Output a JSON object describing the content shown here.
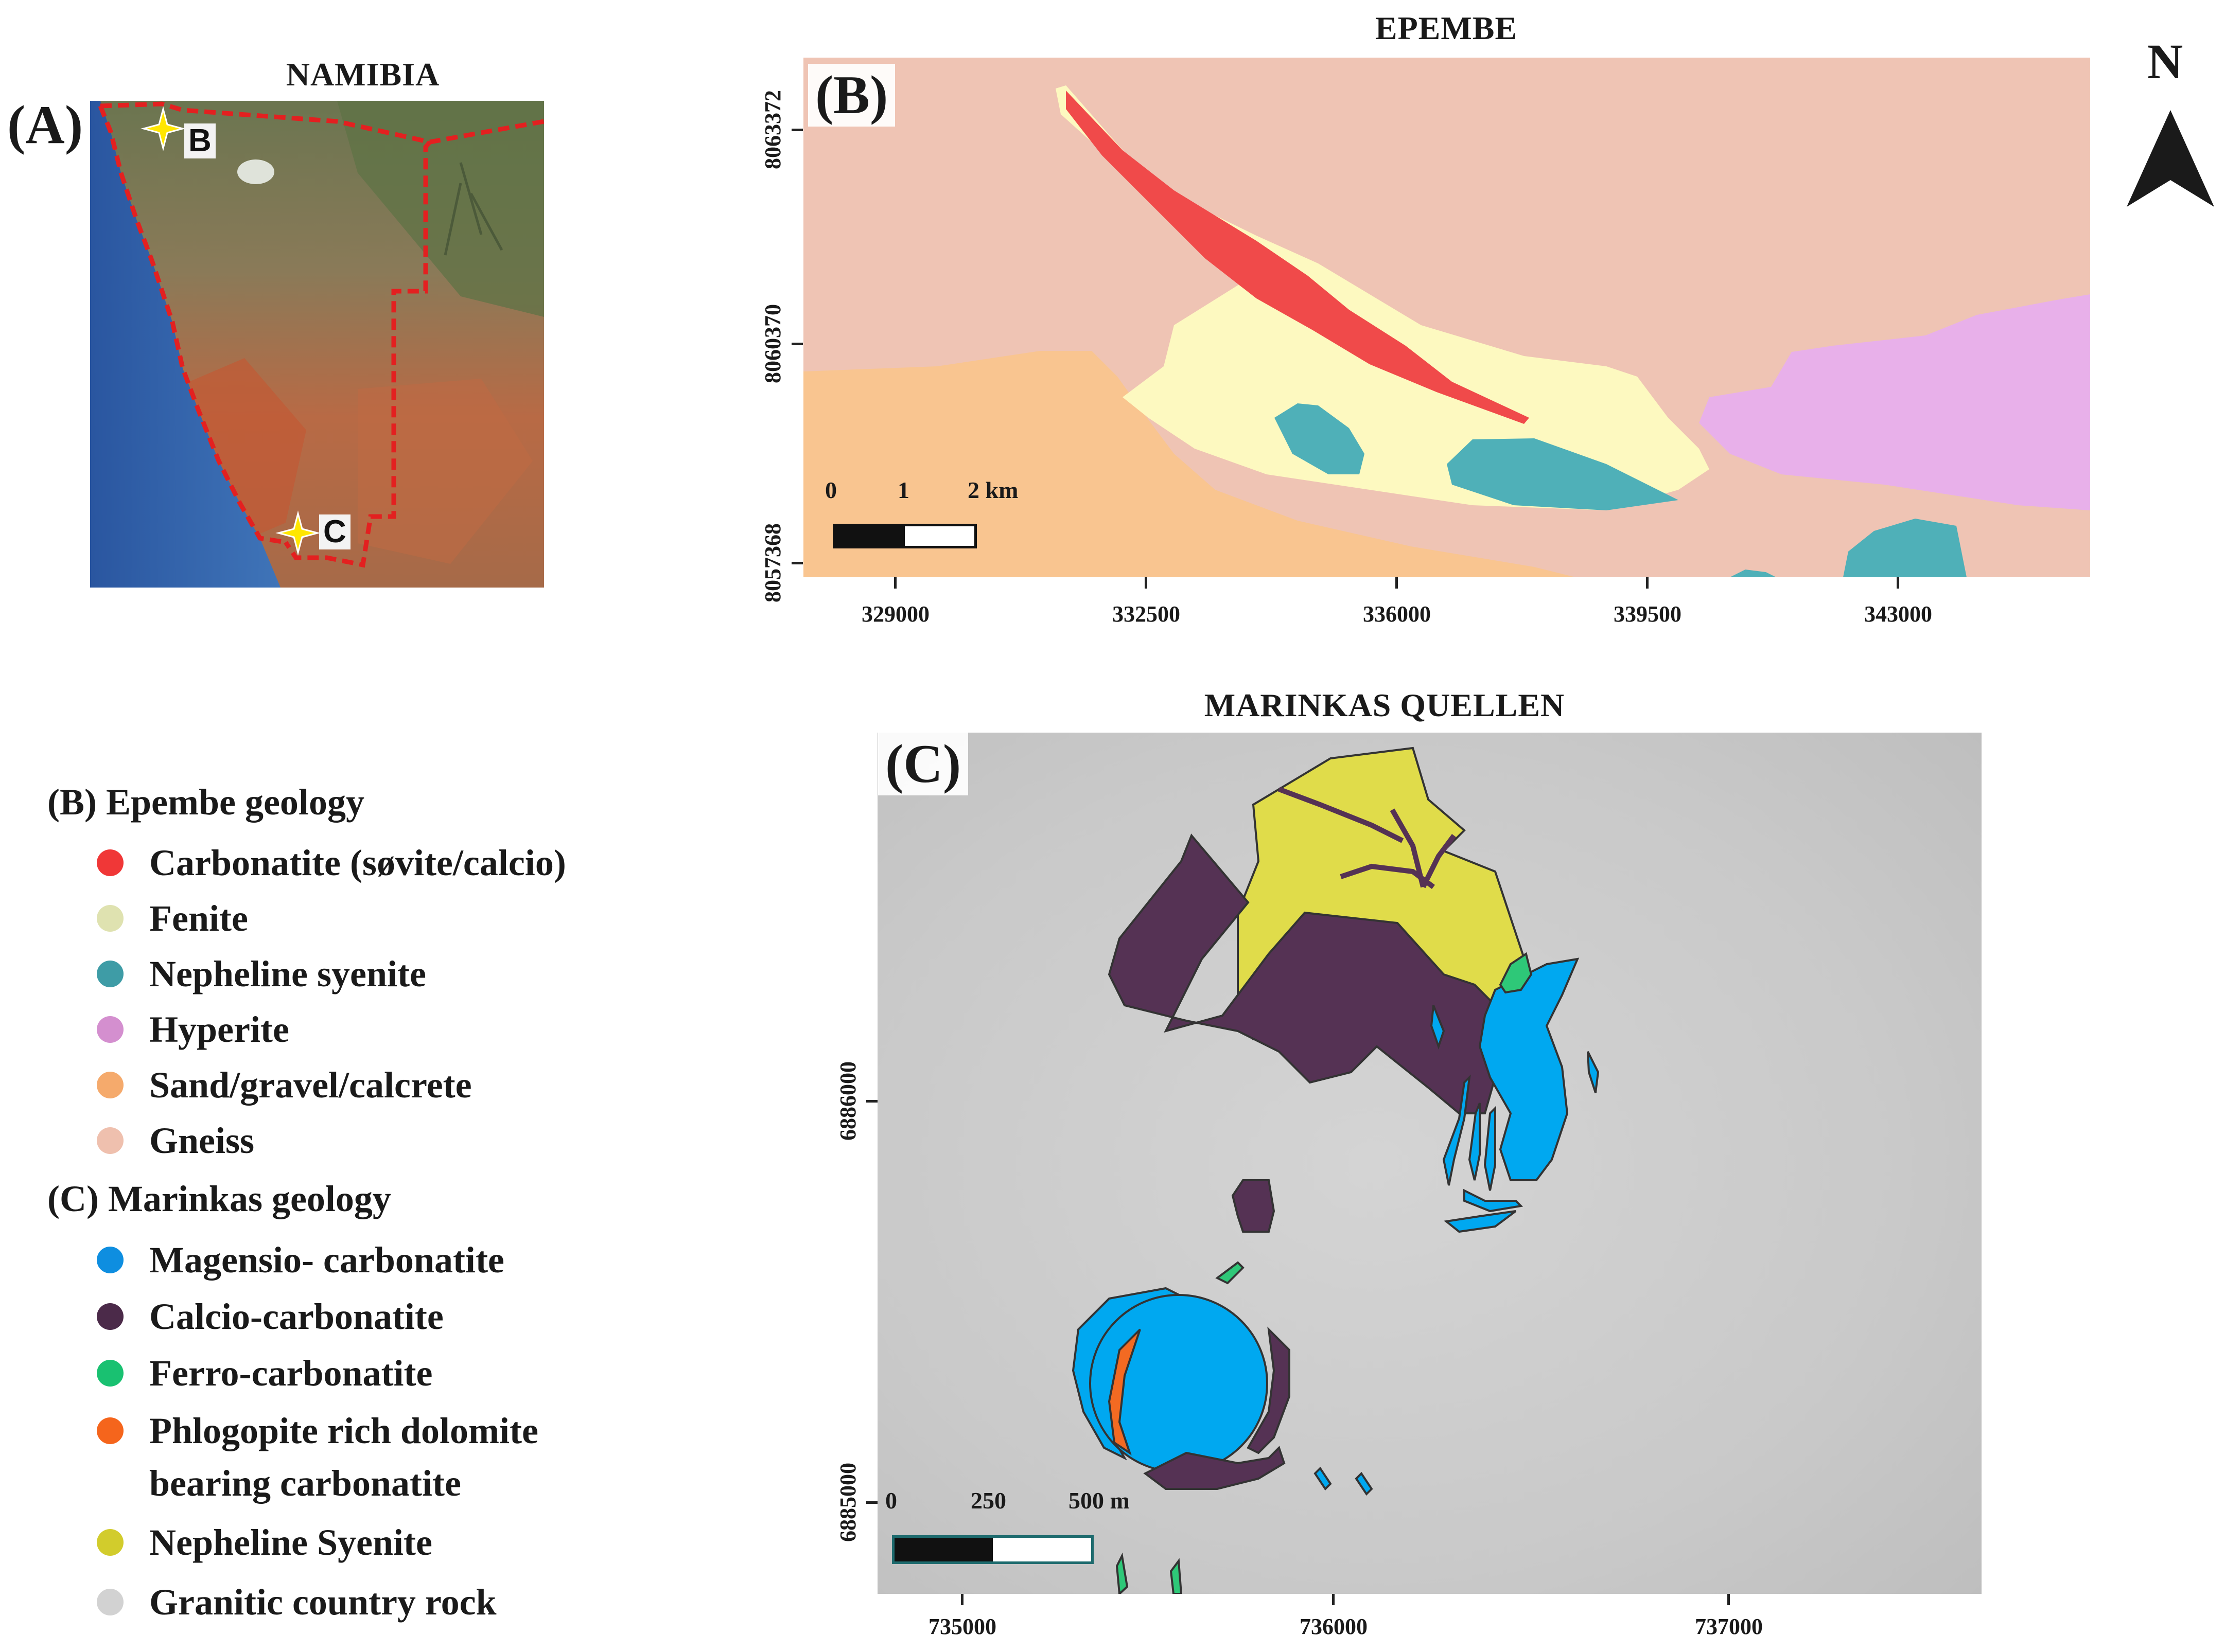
{
  "panel_a": {
    "title": "NAMIBIA",
    "label": "(A)",
    "markers": [
      {
        "label": "B"
      },
      {
        "label": "C"
      }
    ],
    "colors": {
      "border": "#e32020",
      "marker": "#ffe600",
      "ocean": "#2f5fa8"
    }
  },
  "panel_b": {
    "title": "EPEMBE",
    "label": "(B)",
    "x_ticks": [
      "329000",
      "332500",
      "336000",
      "339500",
      "343000"
    ],
    "y_ticks": [
      "8063372",
      "8060370",
      "8057368"
    ],
    "scale_bar": {
      "labels": [
        "0",
        "1",
        "2 km"
      ]
    },
    "colors": {
      "gneiss": "#efc4b4",
      "sand": "#f9c590",
      "fenite": "#fdf9c0",
      "carbonatite": "#f04a4a",
      "nepheline": "#4fb0b8",
      "hyperite": "#e8b0ea"
    }
  },
  "panel_c": {
    "title": "MARINKAS QUELLEN",
    "label": "(C)",
    "x_ticks": [
      "735000",
      "736000",
      "737000"
    ],
    "y_ticks": [
      "6886000",
      "6885000"
    ],
    "scale_bar": {
      "labels": [
        "0",
        "250",
        "500 m"
      ]
    },
    "colors": {
      "granitic": "#cccccc",
      "magnesio": "#00a8f0",
      "calcio": "#553254",
      "ferro": "#2ec878",
      "phlogopite": "#f36a22",
      "nepheline": "#e0dc4a"
    }
  },
  "north_arrow": {
    "label": "N"
  },
  "legend_b": {
    "heading": "(B) Epembe geology",
    "items": [
      {
        "label": "Carbonatite (søvite/calcio)",
        "color": "#f03737"
      },
      {
        "label": "Fenite",
        "color": "#dfe2b0"
      },
      {
        "label": "Nepheline syenite",
        "color": "#3e9ca6"
      },
      {
        "label": "Hyperite",
        "color": "#d48fcf"
      },
      {
        "label": "Sand/gravel/calcrete",
        "color": "#f5aa6c"
      },
      {
        "label": "Gneiss",
        "color": "#efc0ae"
      }
    ]
  },
  "legend_c": {
    "heading": "(C) Marinkas geology",
    "items": [
      {
        "label": "Magensio- carbonatite",
        "color": "#0e8ee0"
      },
      {
        "label": "Calcio-carbonatite",
        "color": "#4b2a49"
      },
      {
        "label": "Ferro-carbonatite",
        "color": "#19c171"
      },
      {
        "label": "Phlogopite rich dolomite bearing carbonatite",
        "color": "#f5651c"
      },
      {
        "label": "Nepheline Syenite",
        "color": "#d2cc2c"
      },
      {
        "label": "Granitic country rock",
        "color": "#d2d2d2"
      }
    ]
  }
}
